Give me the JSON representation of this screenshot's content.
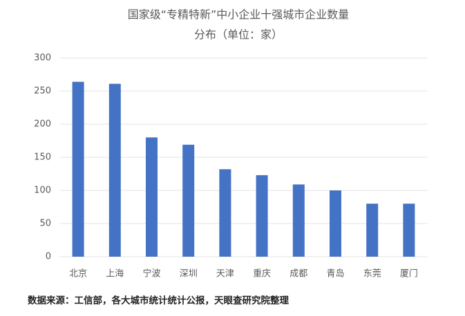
{
  "chart_data": {
    "type": "bar",
    "title": "国家级“专精特新”中小企业十强城市企业数量",
    "subtitle": "分布（单位：家）",
    "categories": [
      "北京",
      "上海",
      "宁波",
      "深圳",
      "天津",
      "重庆",
      "成都",
      "青岛",
      "东莞",
      "厦门"
    ],
    "values": [
      264,
      261,
      180,
      169,
      132,
      123,
      109,
      100,
      80,
      80
    ],
    "color": "#4472c4",
    "ylim": [
      0,
      300
    ],
    "yticks": [
      0,
      50,
      100,
      150,
      200,
      250,
      300
    ],
    "grid": true,
    "source": "数据来源：工信部，各大城市统计统计公报，天眼查研究院整理"
  }
}
